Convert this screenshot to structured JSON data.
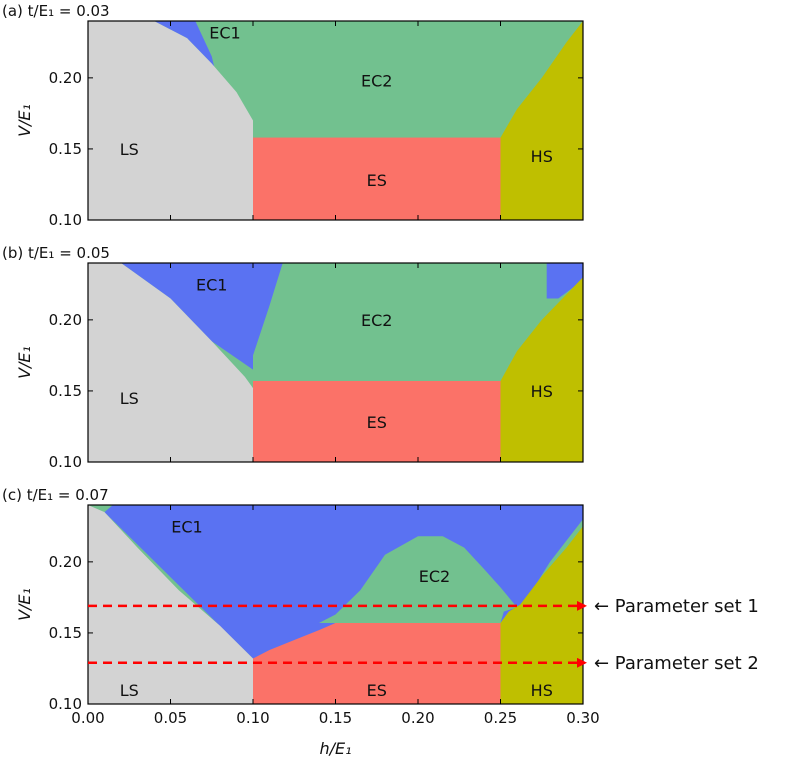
{
  "chart_data": {
    "type": "heatmap",
    "xlabel": "h/E₁",
    "ylabel": "V/E₁",
    "xlim": [
      0.0,
      0.3
    ],
    "ylim": [
      0.1,
      0.24
    ],
    "x_ticks": [
      "0.00",
      "0.05",
      "0.10",
      "0.15",
      "0.20",
      "0.25",
      "0.30"
    ],
    "x_tick_values": [
      0.0,
      0.05,
      0.1,
      0.15,
      0.2,
      0.25,
      0.3
    ],
    "y_ticks": [
      "0.10",
      "0.15",
      "0.20"
    ],
    "y_tick_values": [
      0.1,
      0.15,
      0.2
    ],
    "phase_colors": {
      "LS": "#d3d3d3",
      "EC1": "#5a72f2",
      "EC2": "#72c18f",
      "ES": "#fb7268",
      "HS": "#bfbf00"
    },
    "panels": [
      {
        "title": "(a) t/E₁ = 0.03",
        "ls_boundary": [
          [
            0.0,
            0.24
          ],
          [
            0.04,
            0.24
          ],
          [
            0.06,
            0.228
          ],
          [
            0.075,
            0.21
          ],
          [
            0.09,
            0.19
          ],
          [
            0.1,
            0.17
          ],
          [
            0.1,
            0.1
          ]
        ],
        "ec1_right": [
          [
            0.065,
            0.24
          ],
          [
            0.075,
            0.215
          ],
          [
            0.077,
            0.205
          ]
        ],
        "ec2_lower": [
          [
            0.1,
            0.155
          ],
          [
            0.12,
            0.158
          ],
          [
            0.25,
            0.158
          ]
        ],
        "hs_boundary": [
          [
            0.25,
            0.158
          ],
          [
            0.26,
            0.178
          ],
          [
            0.275,
            0.2
          ],
          [
            0.29,
            0.225
          ],
          [
            0.3,
            0.24
          ]
        ],
        "es_top": 0.158,
        "labels": [
          {
            "text": "LS",
            "x": 0.025,
            "y": 0.15
          },
          {
            "text": "EC1",
            "x": 0.083,
            "y": 0.232
          },
          {
            "text": "EC2",
            "x": 0.175,
            "y": 0.198
          },
          {
            "text": "ES",
            "x": 0.175,
            "y": 0.128
          },
          {
            "text": "HS",
            "x": 0.275,
            "y": 0.145
          }
        ]
      },
      {
        "title": "(b) t/E₁ = 0.05",
        "ls_boundary": [
          [
            0.0,
            0.24
          ],
          [
            0.02,
            0.24
          ],
          [
            0.05,
            0.215
          ],
          [
            0.075,
            0.185
          ],
          [
            0.095,
            0.16
          ],
          [
            0.1,
            0.152
          ],
          [
            0.1,
            0.1
          ]
        ],
        "ec1_right": [
          [
            0.118,
            0.24
          ],
          [
            0.11,
            0.21
          ],
          [
            0.1,
            0.175
          ],
          [
            0.1,
            0.165
          ]
        ],
        "ec2_lower": [
          [
            0.1,
            0.148
          ],
          [
            0.11,
            0.157
          ],
          [
            0.25,
            0.157
          ]
        ],
        "hs_boundary": [
          [
            0.25,
            0.157
          ],
          [
            0.26,
            0.178
          ],
          [
            0.275,
            0.2
          ],
          [
            0.3,
            0.23
          ],
          [
            0.3,
            0.24
          ]
        ],
        "es_top": 0.157,
        "top_right_ec1": [
          [
            0.278,
            0.24
          ],
          [
            0.3,
            0.24
          ],
          [
            0.3,
            0.228
          ],
          [
            0.285,
            0.215
          ],
          [
            0.278,
            0.215
          ]
        ],
        "labels": [
          {
            "text": "LS",
            "x": 0.025,
            "y": 0.145
          },
          {
            "text": "EC1",
            "x": 0.075,
            "y": 0.225
          },
          {
            "text": "EC2",
            "x": 0.175,
            "y": 0.2
          },
          {
            "text": "ES",
            "x": 0.175,
            "y": 0.128
          },
          {
            "text": "HS",
            "x": 0.275,
            "y": 0.15
          }
        ]
      },
      {
        "title": "(c) t/E₁ = 0.07",
        "ls_boundary": [
          [
            0.0,
            0.24
          ],
          [
            0.01,
            0.235
          ],
          [
            0.03,
            0.21
          ],
          [
            0.055,
            0.18
          ],
          [
            0.08,
            0.155
          ],
          [
            0.1,
            0.132
          ],
          [
            0.1,
            0.1
          ]
        ],
        "ec1_region": [
          [
            0.01,
            0.235
          ],
          [
            0.015,
            0.24
          ],
          [
            0.3,
            0.24
          ],
          [
            0.3,
            0.23
          ],
          [
            0.28,
            0.2
          ],
          [
            0.265,
            0.172
          ],
          [
            0.255,
            0.165
          ],
          [
            0.25,
            0.157
          ],
          [
            0.15,
            0.157
          ],
          [
            0.13,
            0.145
          ],
          [
            0.115,
            0.135
          ],
          [
            0.1,
            0.132
          ]
        ],
        "ec2_region": [
          [
            0.14,
            0.157
          ],
          [
            0.15,
            0.163
          ],
          [
            0.165,
            0.18
          ],
          [
            0.18,
            0.205
          ],
          [
            0.2,
            0.218
          ],
          [
            0.215,
            0.218
          ],
          [
            0.228,
            0.21
          ],
          [
            0.24,
            0.195
          ],
          [
            0.25,
            0.182
          ],
          [
            0.26,
            0.168
          ],
          [
            0.252,
            0.165
          ],
          [
            0.25,
            0.157
          ]
        ],
        "es_top": 0.157,
        "es_left_steps": [
          [
            0.1,
            0.132
          ],
          [
            0.11,
            0.138
          ],
          [
            0.125,
            0.145
          ],
          [
            0.14,
            0.152
          ],
          [
            0.15,
            0.157
          ]
        ],
        "hs_boundary": [
          [
            0.25,
            0.157
          ],
          [
            0.255,
            0.165
          ],
          [
            0.262,
            0.17
          ],
          [
            0.275,
            0.19
          ],
          [
            0.29,
            0.21
          ],
          [
            0.3,
            0.225
          ]
        ],
        "labels": [
          {
            "text": "LS",
            "x": 0.025,
            "y": 0.11
          },
          {
            "text": "EC1",
            "x": 0.06,
            "y": 0.225
          },
          {
            "text": "EC2",
            "x": 0.21,
            "y": 0.19
          },
          {
            "text": "ES",
            "x": 0.175,
            "y": 0.11
          },
          {
            "text": "HS",
            "x": 0.275,
            "y": 0.11
          }
        ],
        "parameter_lines": [
          {
            "y": 0.169,
            "label": "← Parameter set 1"
          },
          {
            "y": 0.129,
            "label": "← Parameter set 2"
          }
        ]
      }
    ]
  }
}
